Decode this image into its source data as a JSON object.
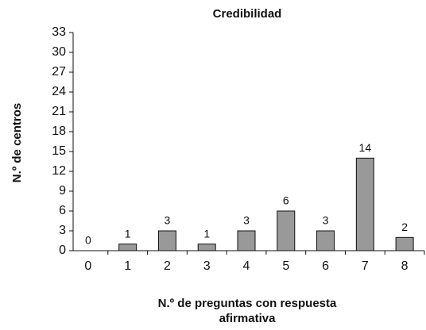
{
  "chart_data": {
    "type": "bar",
    "title": "Credibilidad",
    "xlabel": [
      "N.º de preguntas con respuesta",
      "afirmativa"
    ],
    "ylabel": "N.º de centros",
    "categories": [
      "0",
      "1",
      "2",
      "3",
      "4",
      "5",
      "6",
      "7",
      "8"
    ],
    "values": [
      0,
      1,
      3,
      1,
      3,
      6,
      3,
      14,
      2
    ],
    "color": "#999999",
    "ylim": [
      0,
      33
    ],
    "yticks": [
      0,
      3,
      6,
      9,
      12,
      15,
      18,
      21,
      24,
      27,
      30,
      33
    ],
    "grid": false
  }
}
